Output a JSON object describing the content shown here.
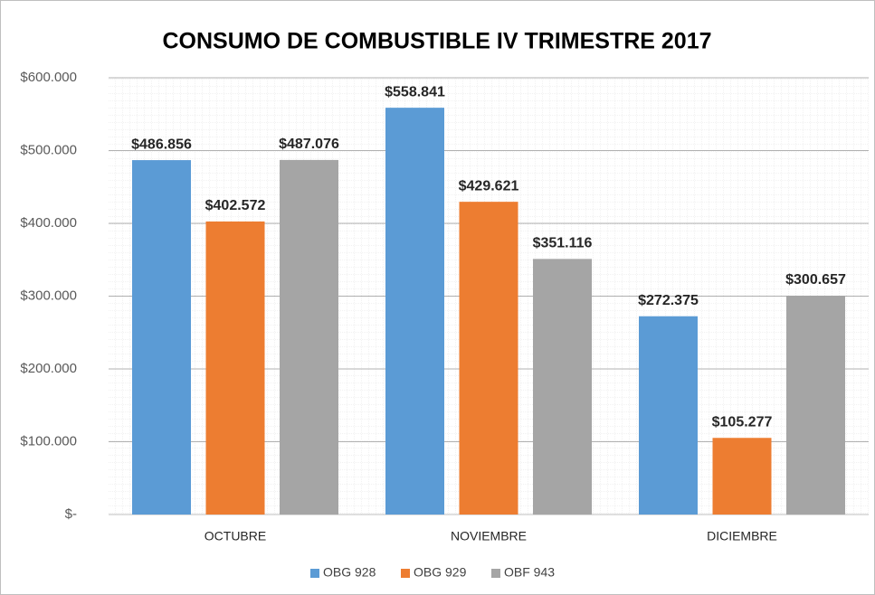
{
  "chart_data": {
    "type": "bar",
    "title": "CONSUMO DE COMBUSTIBLE IV TRIMESTRE 2017",
    "categories": [
      "OCTUBRE",
      "NOVIEMBRE",
      "DICIEMBRE"
    ],
    "series": [
      {
        "name": "OBG 928",
        "color": "#5b9bd5",
        "values": [
          486856,
          558841,
          272375
        ],
        "value_labels": [
          "$486.856",
          "$558.841",
          "$272.375"
        ]
      },
      {
        "name": "OBG 929",
        "color": "#ed7d31",
        "values": [
          402572,
          429621,
          105277
        ],
        "value_labels": [
          "$402.572",
          "$429.621",
          "$105.277"
        ]
      },
      {
        "name": "OBF 943",
        "color": "#a5a5a5",
        "values": [
          487076,
          351116,
          300657
        ],
        "value_labels": [
          "$487.076",
          "$351.116",
          "$300.657"
        ]
      }
    ],
    "ylim": [
      0,
      600000
    ],
    "yticks": [
      {
        "value": 0,
        "label": "$-"
      },
      {
        "value": 100000,
        "label": "$100.000"
      },
      {
        "value": 200000,
        "label": "$200.000"
      },
      {
        "value": 300000,
        "label": "$300.000"
      },
      {
        "value": 400000,
        "label": "$400.000"
      },
      {
        "value": 500000,
        "label": "$500.000"
      },
      {
        "value": 600000,
        "label": "$600.000"
      }
    ],
    "grid": true,
    "legend": "bottom"
  }
}
